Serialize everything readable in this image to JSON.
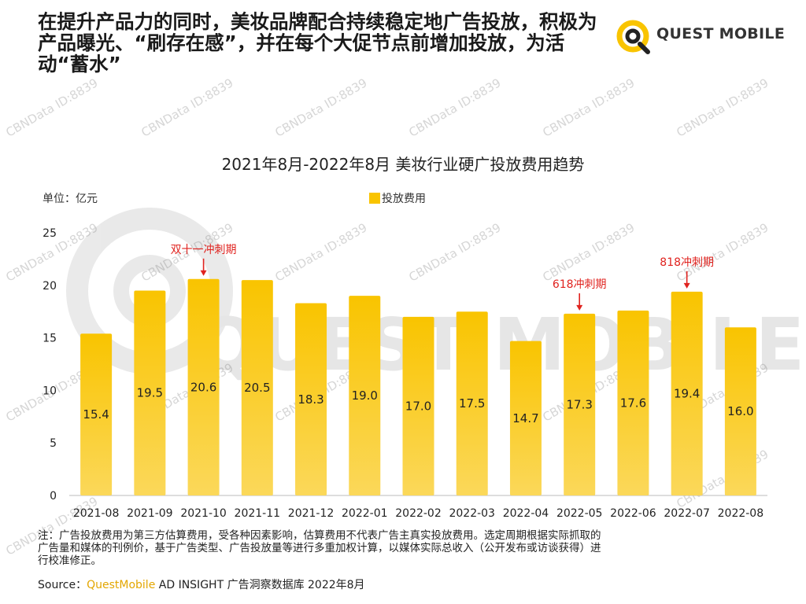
{
  "headline": "在提升产品力的同时，美妆品牌配合持续稳定地广告投放，积极为产品曝光、“刷存在感”，并在每个大促节点前增加投放，为活动“蓄水”",
  "logo": {
    "text": "QUEST MOBILE",
    "icon": "quest-mobile-logo-icon"
  },
  "watermark": "CBNData ID:8839",
  "chart_data": {
    "type": "bar",
    "title": "2021年8月-2022年8月 美妆行业硬广投放费用趋势",
    "unit_label": "单位：亿元",
    "categories": [
      "2021-08",
      "2021-09",
      "2021-10",
      "2021-11",
      "2021-12",
      "2022-01",
      "2022-02",
      "2022-03",
      "2022-04",
      "2022-05",
      "2022-06",
      "2022-07",
      "2022-08"
    ],
    "series": [
      {
        "name": "投放费用",
        "values": [
          15.4,
          19.5,
          20.6,
          20.5,
          18.3,
          19.0,
          17.0,
          17.5,
          14.7,
          17.3,
          17.6,
          19.4,
          16.0
        ]
      }
    ],
    "ylim": [
      0,
      25
    ],
    "yticks": [
      0,
      5,
      10,
      15,
      20,
      25
    ],
    "legend_position": "top",
    "bar_color": "#f9c400",
    "bar_color_bottom": "#fbd85a",
    "annotations": [
      {
        "label": "双十一冲刺期",
        "category": "2021-10",
        "color": "#e0231f"
      },
      {
        "label": "618冲刺期",
        "category": "2022-05",
        "color": "#e0231f"
      },
      {
        "label": "818冲刺期",
        "category": "2022-07",
        "color": "#e0231f"
      }
    ]
  },
  "notes": {
    "line1": "注：广告投放费用为第三方估算费用，受各种因素影响，估算费用不代表广告主真实投放费用。选定周期根据实际抓取的",
    "line2": "广告量和媒体的刊例价，基于广告类型、广告投放量等进行多重加权计算，以媒体实际总收入（公开发布或访谈获得）进",
    "line3": "行校准修正。"
  },
  "source": {
    "prefix": "Source：",
    "brand": "QuestMobile",
    "suffix": " AD INSIGHT 广告洞察数据库 2022年8月"
  }
}
